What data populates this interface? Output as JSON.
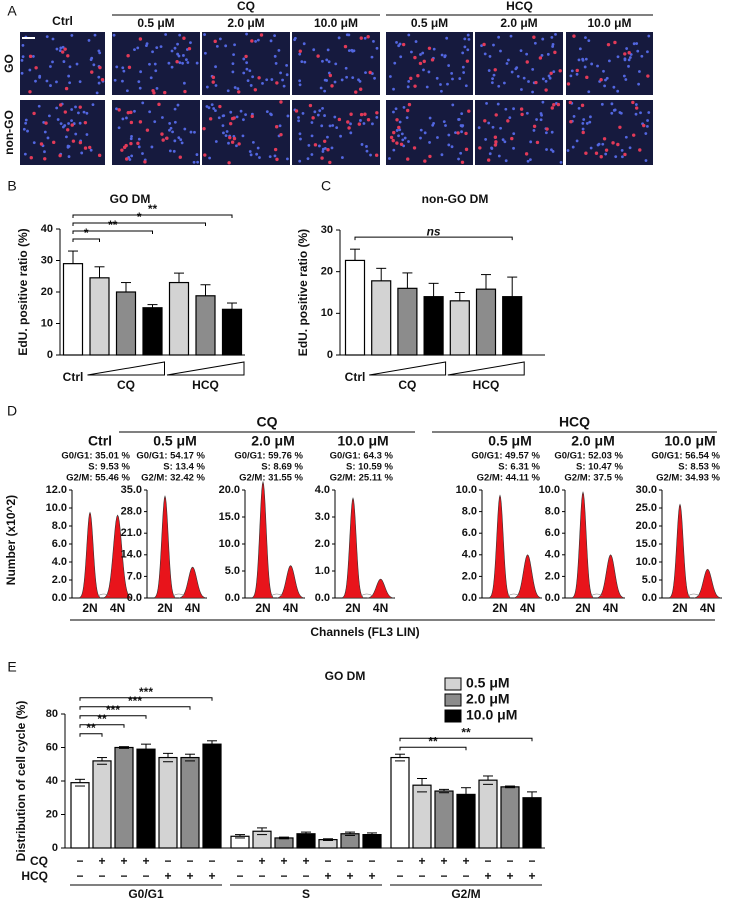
{
  "panel_a": {
    "label": "A",
    "ctrl": "Ctrl",
    "groups": [
      {
        "label": "CQ",
        "doses": [
          "0.5 μM",
          "2.0 μM",
          "10.0 μM"
        ]
      },
      {
        "label": "HCQ",
        "doses": [
          "0.5 μM",
          "2.0 μM",
          "10.0 μM"
        ]
      }
    ],
    "rows": [
      "GO",
      "non-GO"
    ]
  },
  "chart_data": [
    {
      "type": "bar",
      "panel_label": "B",
      "title": "GO DM",
      "ylabel": "EdU. positive ratio (%)",
      "categories": [
        "Ctrl",
        null,
        null,
        null,
        null,
        null,
        null
      ],
      "group_labels": [
        "CQ",
        "HCQ"
      ],
      "values": [
        29,
        24.5,
        20,
        15,
        23,
        18.8,
        14.5
      ],
      "errors": [
        4,
        3.5,
        3,
        1,
        3,
        3.5,
        2
      ],
      "colors": [
        "#ffffff",
        "#d3d3d3",
        "#8c8c8c",
        "#000000",
        "#d3d3d3",
        "#8c8c8c",
        "#000000"
      ],
      "ylim": [
        0,
        40
      ],
      "yticks": [
        0,
        10,
        20,
        30,
        40
      ],
      "brackets": [
        {
          "text": "*",
          "from": 0,
          "to": 1
        },
        {
          "text": "**",
          "from": 0,
          "to": 3
        },
        {
          "text": "*",
          "from": 0,
          "to": 5
        },
        {
          "text": "**",
          "from": 0,
          "to": 6
        }
      ]
    },
    {
      "type": "bar",
      "panel_label": "C",
      "title": "non-GO DM",
      "ylabel": "EdU. positive ratio (%)",
      "categories": [
        "Ctrl",
        null,
        null,
        null,
        null,
        null,
        null
      ],
      "group_labels": [
        "CQ",
        "HCQ"
      ],
      "values": [
        22.7,
        17.8,
        16,
        14,
        13,
        15.8,
        14
      ],
      "errors": [
        2.7,
        3,
        3.7,
        3.2,
        2,
        3.5,
        4.7
      ],
      "colors": [
        "#ffffff",
        "#d3d3d3",
        "#8c8c8c",
        "#000000",
        "#d3d3d3",
        "#8c8c8c",
        "#000000"
      ],
      "ylim": [
        0,
        30
      ],
      "yticks": [
        0,
        10,
        20,
        30
      ],
      "brackets": [
        {
          "text": "ns",
          "from": 0,
          "to": 6
        }
      ]
    },
    {
      "type": "flow",
      "panel_label": "D",
      "ylabel": "Number (x10^2)",
      "xlabel": "Channels (FL3 LIN)",
      "group_labels": [
        "CQ",
        "HCQ"
      ],
      "xcategories": [
        "2N",
        "4N"
      ],
      "color": "#e8141b",
      "panels": [
        {
          "title": "Ctrl",
          "stats": [
            "G0/G1: 35.01 %",
            "S: 9.53 %",
            "G2/M: 55.46 %"
          ],
          "ylim": [
            0,
            12
          ],
          "yticks": [
            {
              "value": 0,
              "label": "0.0"
            },
            {
              "value": 2,
              "label": "2.0"
            },
            {
              "value": 4,
              "label": "4.0"
            },
            {
              "value": 6,
              "label": "6.0"
            },
            {
              "value": 8,
              "label": "8.0"
            },
            {
              "value": 10,
              "label": "10.0"
            },
            {
              "value": 12,
              "label": "12.0"
            }
          ],
          "peaks": [
            9.5,
            9.2
          ]
        },
        {
          "title": "0.5 μM",
          "stats": [
            "G0/G1: 54.17 %",
            "S: 13.4 %",
            "G2/M: 32.42 %"
          ],
          "ylim": [
            0,
            35
          ],
          "yticks": [
            {
              "value": 0,
              "label": "0.0"
            },
            {
              "value": 7,
              "label": "7.0"
            },
            {
              "value": 14,
              "label": "14.0"
            },
            {
              "value": 21,
              "label": "21.0"
            },
            {
              "value": 28,
              "label": "28.0"
            },
            {
              "value": 35,
              "label": "35.0"
            }
          ],
          "peaks": [
            33,
            10
          ]
        },
        {
          "title": "2.0 μM",
          "stats": [
            "G0/G1: 59.76 %",
            "S: 8.69 %",
            "G2/M: 31.55 %"
          ],
          "ylim": [
            0,
            20
          ],
          "yticks": [
            {
              "value": 0,
              "label": "0.0"
            },
            {
              "value": 5,
              "label": "5.0"
            },
            {
              "value": 10,
              "label": "10.0"
            },
            {
              "value": 15,
              "label": "15.0"
            },
            {
              "value": 20,
              "label": "20.0"
            }
          ],
          "peaks": [
            21.5,
            6
          ]
        },
        {
          "title": "10.0 μM",
          "stats": [
            "G0/G1: 64.3 %",
            "S: 10.59 %",
            "G2/M: 25.11 %"
          ],
          "ylim": [
            0,
            4
          ],
          "yticks": [
            {
              "value": 0,
              "label": "0.0"
            },
            {
              "value": 1,
              "label": "1.0"
            },
            {
              "value": 2,
              "label": "2.0"
            },
            {
              "value": 3,
              "label": "3.0"
            },
            {
              "value": 4,
              "label": "4.0"
            }
          ],
          "peaks": [
            3.7,
            0.7
          ]
        },
        {
          "title": "0.5 μM",
          "stats": [
            "G0/G1: 49.57 %",
            "S: 6.31 %",
            "G2/M: 44.11 %"
          ],
          "ylim": [
            0,
            10
          ],
          "yticks": [
            {
              "value": 0,
              "label": "0.0"
            },
            {
              "value": 2,
              "label": "2.0"
            },
            {
              "value": 4,
              "label": "4.0"
            },
            {
              "value": 6,
              "label": "6.0"
            },
            {
              "value": 8,
              "label": "8.0"
            },
            {
              "value": 10,
              "label": "10.0"
            }
          ],
          "peaks": [
            9.5,
            4
          ]
        },
        {
          "title": "2.0 μM",
          "stats": [
            "G0/G1: 52.03 %",
            "S: 10.47 %",
            "G2/M: 37.5 %"
          ],
          "ylim": [
            0,
            10
          ],
          "yticks": [
            {
              "value": 0,
              "label": "0.0"
            },
            {
              "value": 2,
              "label": "2.0"
            },
            {
              "value": 4,
              "label": "4.0"
            },
            {
              "value": 6,
              "label": "6.0"
            },
            {
              "value": 8,
              "label": "8.0"
            },
            {
              "value": 10,
              "label": "10.0"
            }
          ],
          "peaks": [
            9.8,
            4
          ]
        },
        {
          "title": "10.0 μM",
          "stats": [
            "G0/G1: 56.54 %",
            "S: 8.53 %",
            "G2/M: 34.93 %"
          ],
          "ylim": [
            0,
            30
          ],
          "yticks": [
            {
              "value": 0,
              "label": "0.0"
            },
            {
              "value": 5,
              "label": "5.0"
            },
            {
              "value": 10,
              "label": "10.0"
            },
            {
              "value": 15,
              "label": "15.0"
            },
            {
              "value": 20,
              "label": "20.0"
            },
            {
              "value": 25,
              "label": "25.0"
            },
            {
              "value": 30,
              "label": "30.0"
            }
          ],
          "peaks": [
            26,
            8
          ]
        }
      ]
    },
    {
      "type": "bar",
      "panel_label": "E",
      "title": "GO DM",
      "ylabel": "Distribution of cell cycle (%)",
      "categories": [
        "G0/G1",
        "S",
        "G2/M"
      ],
      "series": [
        {
          "color": "#ffffff",
          "values": [
            39,
            7,
            54
          ],
          "errors": [
            2,
            1,
            2
          ]
        },
        {
          "color": "#d3d3d3",
          "values": [
            52,
            10,
            37.5
          ],
          "errors": [
            2,
            2,
            4
          ]
        },
        {
          "color": "#8c8c8c",
          "values": [
            60,
            6,
            34
          ],
          "errors": [
            0.5,
            0.5,
            1
          ]
        },
        {
          "color": "#000000",
          "values": [
            59,
            8.5,
            32
          ],
          "errors": [
            3,
            1,
            4
          ]
        },
        {
          "color": "#d3d3d3",
          "values": [
            54,
            5,
            40.5
          ],
          "errors": [
            2.5,
            0.5,
            2.5
          ]
        },
        {
          "color": "#8c8c8c",
          "values": [
            54,
            8.5,
            36.5
          ],
          "errors": [
            2,
            1,
            0.5
          ]
        },
        {
          "color": "#000000",
          "values": [
            62,
            8,
            30
          ],
          "errors": [
            2,
            1,
            3.5
          ]
        }
      ],
      "legend": [
        {
          "name": "0.5 μM",
          "color": "#d3d3d3"
        },
        {
          "name": "2.0 μM",
          "color": "#8c8c8c"
        },
        {
          "name": "10.0 μM",
          "color": "#000000"
        }
      ],
      "treatments": [
        {
          "label": "CQ",
          "signs": [
            "−",
            "+",
            "+",
            "+",
            "−",
            "−",
            "−"
          ]
        },
        {
          "label": "HCQ",
          "signs": [
            "−",
            "−",
            "−",
            "−",
            "+",
            "+",
            "+"
          ]
        }
      ],
      "ylim": [
        0,
        80
      ],
      "yticks": [
        0,
        20,
        40,
        60,
        80
      ],
      "brackets": [
        {
          "text": "**",
          "group": 0,
          "from": 0,
          "to": 1
        },
        {
          "text": "**",
          "group": 0,
          "from": 0,
          "to": 2
        },
        {
          "text": "***",
          "group": 0,
          "from": 0,
          "to": 3
        },
        {
          "text": "***",
          "group": 0,
          "from": 0,
          "to": 5
        },
        {
          "text": "***",
          "group": 0,
          "from": 0,
          "to": 6
        },
        {
          "text": "**",
          "group": 2,
          "from": 0,
          "to": 3
        },
        {
          "text": "**",
          "group": 2,
          "from": 0,
          "to": 6
        }
      ]
    }
  ]
}
